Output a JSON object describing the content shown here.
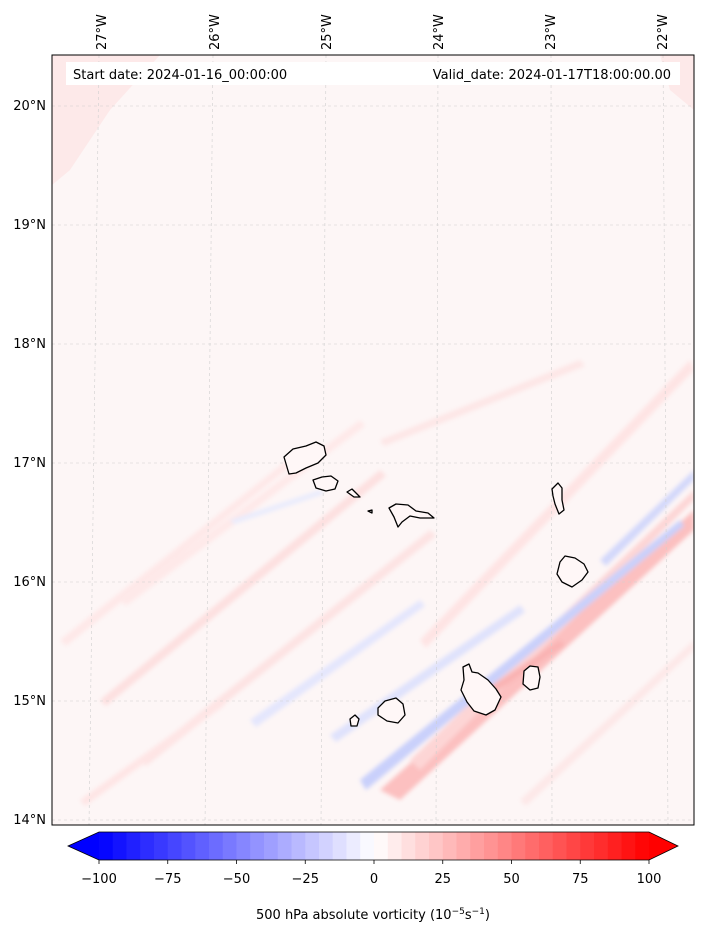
{
  "header": {
    "start_date": "Start date: 2024-01-16_00:00:00",
    "valid_date": "Valid_date: 2024-01-17T18:00:00.00"
  },
  "map": {
    "longitude_labels": [
      "27°W",
      "26°W",
      "25°W",
      "24°W",
      "23°W",
      "22°W"
    ],
    "latitude_labels": [
      "20°N",
      "19°N",
      "18°N",
      "17°N",
      "16°N",
      "15°N",
      "14°N"
    ],
    "gridlines": true
  },
  "colorbar": {
    "label": "500 hPa absolute vorticity (10",
    "label_exp1": "−5",
    "label_mid": "s",
    "label_exp2": "−1",
    "label_end": ")",
    "ticks": [
      "−100",
      "−75",
      "−50",
      "−25",
      "0",
      "25",
      "50",
      "75",
      "100"
    ],
    "min": -100,
    "max": 100,
    "colors": {
      "low": "#0000ff",
      "mid": "#ffffff",
      "high": "#ff0000"
    }
  }
}
